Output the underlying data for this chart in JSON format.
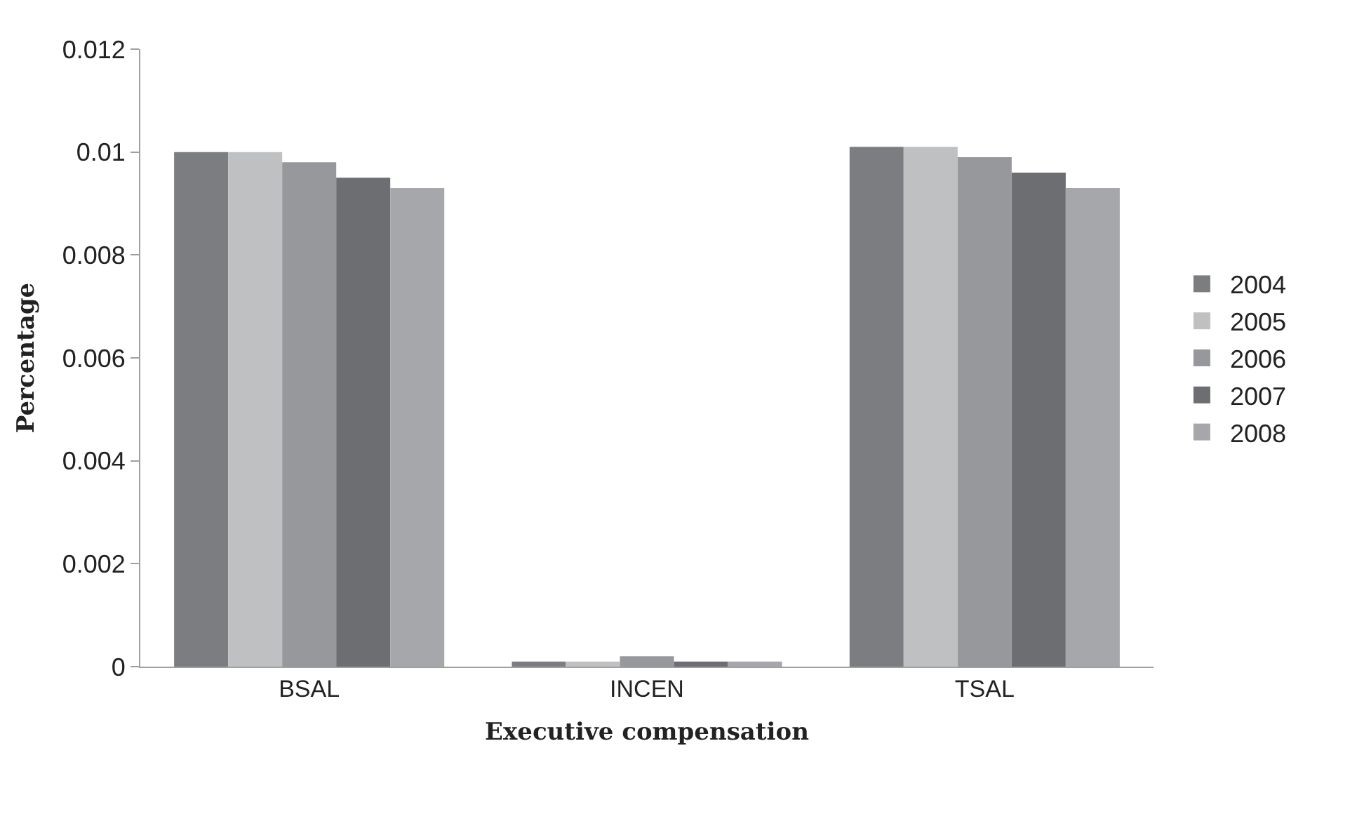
{
  "chart_data": {
    "type": "bar",
    "xlabel": "Executive compensation",
    "ylabel": "Percentage",
    "categories": [
      "BSAL",
      "INCEN",
      "TSAL"
    ],
    "series": [
      {
        "name": "2004",
        "color": "#7c7d81",
        "values": [
          0.01,
          0.0001,
          0.0101
        ]
      },
      {
        "name": "2005",
        "color": "#bfc0c2",
        "values": [
          0.01,
          0.0001,
          0.0101
        ]
      },
      {
        "name": "2006",
        "color": "#97989c",
        "values": [
          0.0098,
          0.0002,
          0.0099
        ]
      },
      {
        "name": "2007",
        "color": "#6d6e72",
        "values": [
          0.0095,
          0.0001,
          0.0096
        ]
      },
      {
        "name": "2008",
        "color": "#a6a7ab",
        "values": [
          0.0093,
          0.0001,
          0.0093
        ]
      }
    ],
    "ylim": [
      0,
      0.012
    ],
    "yticks": [
      0,
      0.002,
      0.004,
      0.006,
      0.008,
      0.01,
      0.012
    ],
    "legend": "right"
  }
}
